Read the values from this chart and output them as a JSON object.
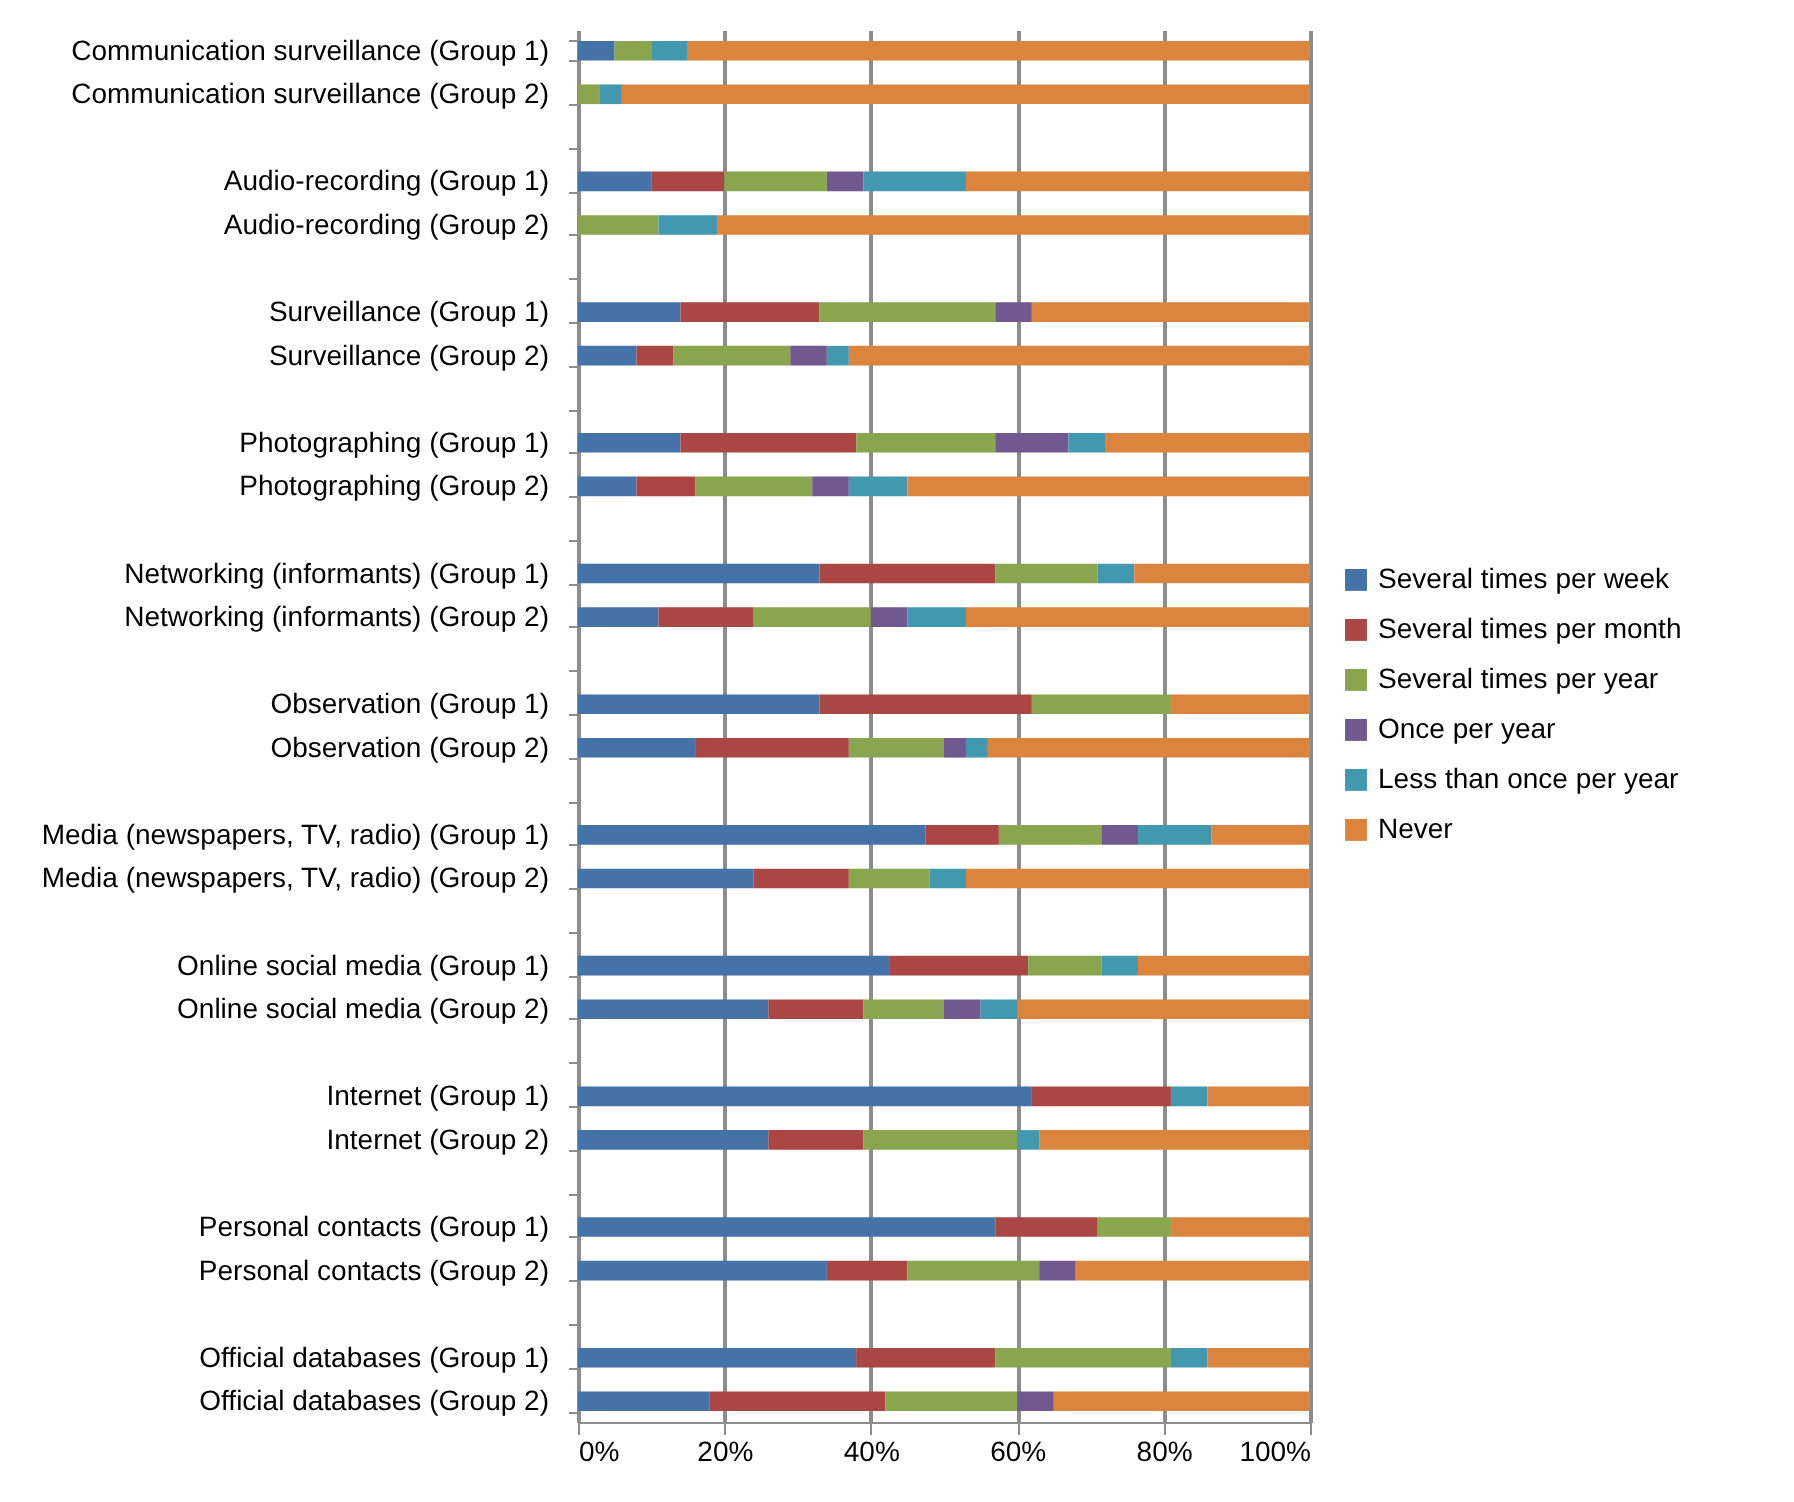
{
  "chart_data": {
    "type": "bar",
    "orientation": "horizontal",
    "stacked": true,
    "categories": [
      "Communication surveillance (Group 1)",
      "Communication surveillance (Group 2)",
      null,
      "Audio-recording (Group 1)",
      "Audio-recording (Group 2)",
      null,
      "Surveillance (Group 1)",
      "Surveillance (Group 2)",
      null,
      "Photographing (Group 1)",
      "Photographing (Group 2)",
      null,
      "Networking (informants) (Group 1)",
      "Networking (informants) (Group 2)",
      null,
      "Observation (Group 1)",
      "Observation (Group 2)",
      null,
      "Media (newspapers, TV, radio) (Group 1)",
      "Media (newspapers, TV, radio) (Group 2)",
      null,
      "Online social media (Group 1)",
      "Online social media (Group 2)",
      null,
      "Internet (Group 1)",
      "Internet (Group 2)",
      null,
      "Personal contacts (Group 1)",
      "Personal contacts (Group 2)",
      null,
      "Official databases (Group 1)",
      "Official databases (Group 2)"
    ],
    "series": [
      {
        "name": "Several times per week",
        "color": "#4572a7",
        "values": [
          5,
          0,
          null,
          10,
          0,
          null,
          14,
          8,
          null,
          14,
          8,
          null,
          33,
          11,
          null,
          33,
          16,
          null,
          47.5,
          24,
          null,
          42.5,
          26,
          null,
          62,
          26,
          null,
          57,
          34,
          null,
          38,
          18
        ]
      },
      {
        "name": "Several times per month",
        "color": "#aa4643",
        "values": [
          0,
          0,
          null,
          10,
          0,
          null,
          19,
          5,
          null,
          24,
          8,
          null,
          24,
          13,
          null,
          29,
          21,
          null,
          10,
          13,
          null,
          19,
          13,
          null,
          19,
          13,
          null,
          14,
          11,
          null,
          19,
          24
        ]
      },
      {
        "name": "Several times per year",
        "color": "#89a54e",
        "values": [
          5,
          3,
          null,
          14,
          11,
          null,
          24,
          16,
          null,
          19,
          16,
          null,
          14,
          16,
          null,
          19,
          13,
          null,
          14,
          11,
          null,
          10,
          11,
          null,
          0,
          21,
          null,
          10,
          18,
          null,
          24,
          18
        ]
      },
      {
        "name": "Once per year",
        "color": "#71588f",
        "values": [
          0,
          0,
          null,
          5,
          0,
          null,
          5,
          5,
          null,
          10,
          5,
          null,
          0,
          5,
          null,
          0,
          3,
          null,
          5,
          0,
          null,
          0,
          5,
          null,
          0,
          0,
          null,
          0,
          5,
          null,
          0,
          5
        ]
      },
      {
        "name": "Less than once per year",
        "color": "#4198af",
        "values": [
          5,
          3,
          null,
          14,
          8,
          null,
          0,
          3,
          null,
          5,
          8,
          null,
          5,
          8,
          null,
          0,
          3,
          null,
          10,
          5,
          null,
          5,
          5,
          null,
          5,
          3,
          null,
          0,
          0,
          null,
          5,
          0
        ]
      },
      {
        "name": "Never",
        "color": "#db843d",
        "values": [
          85,
          94,
          null,
          47,
          81,
          null,
          38,
          63,
          null,
          28,
          55,
          null,
          24,
          47,
          null,
          19,
          44,
          null,
          13.5,
          47,
          null,
          23.5,
          40,
          null,
          14,
          37,
          null,
          19,
          32,
          null,
          14,
          35
        ]
      }
    ],
    "xlim": [
      0,
      100
    ],
    "xticks": [
      {
        "value": 0,
        "label": "0%"
      },
      {
        "value": 20,
        "label": "20%"
      },
      {
        "value": 40,
        "label": "40%"
      },
      {
        "value": 60,
        "label": "60%"
      },
      {
        "value": 80,
        "label": "80%"
      },
      {
        "value": 100,
        "label": "100%"
      }
    ],
    "grid": "x",
    "legend": "right"
  }
}
